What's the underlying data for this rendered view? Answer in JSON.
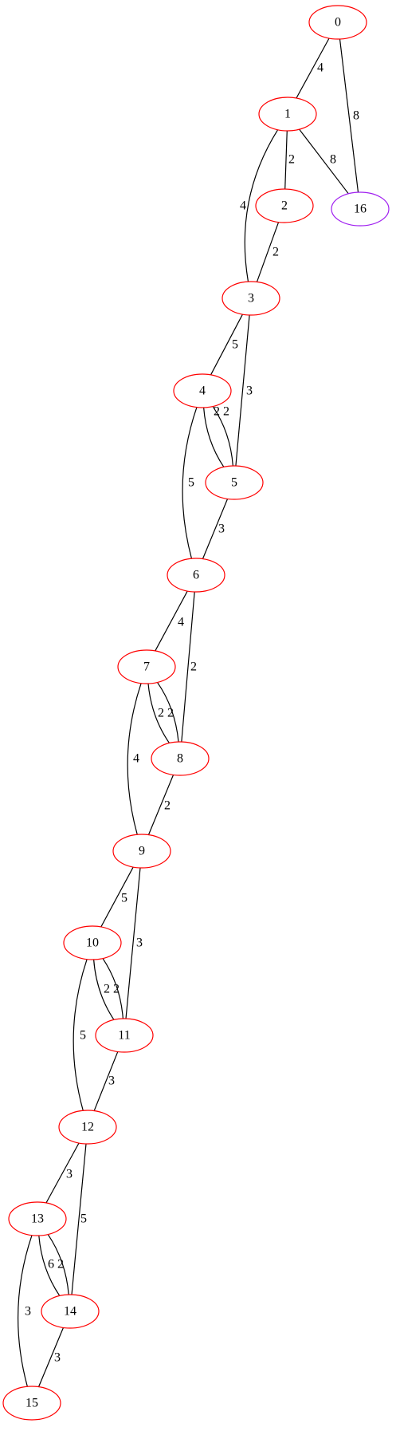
{
  "graph": {
    "colors": {
      "default_node": "#ff0000",
      "highlight_node": "#a020f0",
      "edge": "#000000"
    },
    "nodes": [
      {
        "id": "0",
        "label": "0",
        "color": "#ff0000"
      },
      {
        "id": "1",
        "label": "1",
        "color": "#ff0000"
      },
      {
        "id": "2",
        "label": "2",
        "color": "#ff0000"
      },
      {
        "id": "16",
        "label": "16",
        "color": "#a020f0"
      },
      {
        "id": "3",
        "label": "3",
        "color": "#ff0000"
      },
      {
        "id": "4",
        "label": "4",
        "color": "#ff0000"
      },
      {
        "id": "5",
        "label": "5",
        "color": "#ff0000"
      },
      {
        "id": "6",
        "label": "6",
        "color": "#ff0000"
      },
      {
        "id": "7",
        "label": "7",
        "color": "#ff0000"
      },
      {
        "id": "8",
        "label": "8",
        "color": "#ff0000"
      },
      {
        "id": "9",
        "label": "9",
        "color": "#ff0000"
      },
      {
        "id": "10",
        "label": "10",
        "color": "#ff0000"
      },
      {
        "id": "11",
        "label": "11",
        "color": "#ff0000"
      },
      {
        "id": "12",
        "label": "12",
        "color": "#ff0000"
      },
      {
        "id": "13",
        "label": "13",
        "color": "#ff0000"
      },
      {
        "id": "14",
        "label": "14",
        "color": "#ff0000"
      },
      {
        "id": "15",
        "label": "15",
        "color": "#ff0000"
      }
    ],
    "edges": [
      {
        "source": "0",
        "target": "1",
        "label": "4"
      },
      {
        "source": "0",
        "target": "16",
        "label": "8"
      },
      {
        "source": "1",
        "target": "2",
        "label": "2"
      },
      {
        "source": "1",
        "target": "16",
        "label": "8"
      },
      {
        "source": "1",
        "target": "3",
        "label": "4"
      },
      {
        "source": "2",
        "target": "3",
        "label": "2"
      },
      {
        "source": "3",
        "target": "4",
        "label": "5"
      },
      {
        "source": "3",
        "target": "5",
        "label": "3"
      },
      {
        "source": "4",
        "target": "5",
        "label": "2"
      },
      {
        "source": "4",
        "target": "5",
        "label": "2"
      },
      {
        "source": "4",
        "target": "6",
        "label": "5"
      },
      {
        "source": "5",
        "target": "6",
        "label": "3"
      },
      {
        "source": "6",
        "target": "7",
        "label": "4"
      },
      {
        "source": "6",
        "target": "8",
        "label": "2"
      },
      {
        "source": "7",
        "target": "8",
        "label": "2"
      },
      {
        "source": "7",
        "target": "8",
        "label": "2"
      },
      {
        "source": "7",
        "target": "9",
        "label": "4"
      },
      {
        "source": "8",
        "target": "9",
        "label": "2"
      },
      {
        "source": "9",
        "target": "10",
        "label": "5"
      },
      {
        "source": "9",
        "target": "11",
        "label": "3"
      },
      {
        "source": "10",
        "target": "11",
        "label": "2"
      },
      {
        "source": "10",
        "target": "11",
        "label": "2"
      },
      {
        "source": "10",
        "target": "12",
        "label": "5"
      },
      {
        "source": "11",
        "target": "12",
        "label": "3"
      },
      {
        "source": "12",
        "target": "13",
        "label": "3"
      },
      {
        "source": "12",
        "target": "14",
        "label": "5"
      },
      {
        "source": "13",
        "target": "14",
        "label": "6"
      },
      {
        "source": "13",
        "target": "14",
        "label": "2"
      },
      {
        "source": "13",
        "target": "15",
        "label": "3"
      },
      {
        "source": "14",
        "target": "15",
        "label": "3"
      }
    ]
  }
}
